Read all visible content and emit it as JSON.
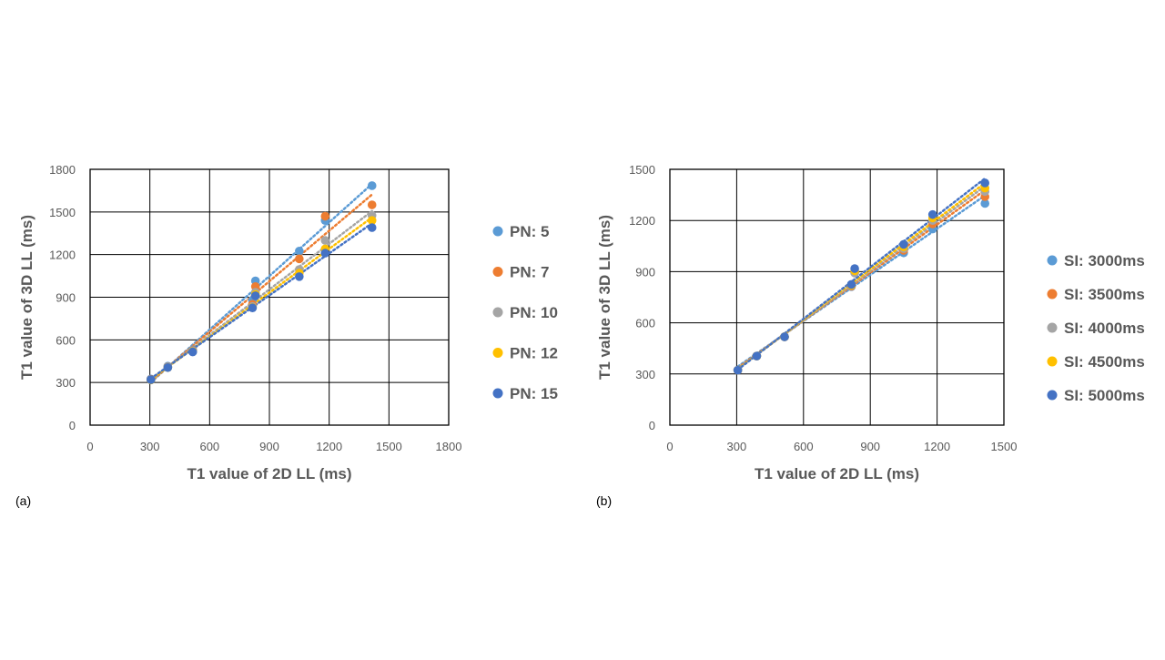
{
  "chart_data": [
    {
      "type": "scatter",
      "panel_label": "(a)",
      "title": "",
      "xlabel": "T1 value of 2D LL (ms)",
      "ylabel": "T1 value of 3D LL (ms)",
      "xlim": [
        0,
        1800
      ],
      "ylim": [
        0,
        1800
      ],
      "xticks": [
        0,
        300,
        600,
        900,
        1200,
        1500,
        1800
      ],
      "yticks": [
        0,
        300,
        600,
        900,
        1200,
        1500,
        1800
      ],
      "grid": true,
      "trendlines": "dotted linear",
      "legend_position": "right",
      "x": [
        305,
        390,
        515,
        815,
        830,
        1050,
        1180,
        1415
      ],
      "series": [
        {
          "name": "PN: 5",
          "color": "#5B9BD5",
          "values": [
            325,
            415,
            530,
            880,
            1015,
            1225,
            1440,
            1685
          ]
        },
        {
          "name": "PN: 7",
          "color": "#ED7D31",
          "values": [
            322,
            410,
            525,
            850,
            975,
            1170,
            1470,
            1550
          ]
        },
        {
          "name": "PN: 10",
          "color": "#A5A5A5",
          "values": [
            320,
            408,
            522,
            835,
            935,
            1095,
            1300,
            1475
          ]
        },
        {
          "name": "PN: 12",
          "color": "#FFC000",
          "values": [
            318,
            405,
            518,
            828,
            920,
            1070,
            1240,
            1440
          ]
        },
        {
          "name": "PN: 15",
          "color": "#4472C4",
          "values": [
            320,
            405,
            515,
            825,
            910,
            1045,
            1210,
            1390
          ]
        }
      ]
    },
    {
      "type": "scatter",
      "panel_label": "(b)",
      "title": "",
      "xlabel": "T1 value of 2D LL (ms)",
      "ylabel": "T1 value of 3D LL (ms)",
      "xlim": [
        0,
        1500
      ],
      "ylim": [
        0,
        1500
      ],
      "xticks": [
        0,
        300,
        600,
        900,
        1200,
        1500
      ],
      "yticks": [
        0,
        300,
        600,
        900,
        1200,
        1500
      ],
      "grid": true,
      "trendlines": "dotted linear",
      "legend_position": "right",
      "x": [
        305,
        390,
        515,
        815,
        830,
        1050,
        1180,
        1415
      ],
      "series": [
        {
          "name": "SI: 3000ms",
          "color": "#5B9BD5",
          "values": [
            322,
            405,
            518,
            812,
            900,
            1010,
            1150,
            1300
          ]
        },
        {
          "name": "SI: 3500ms",
          "color": "#ED7D31",
          "values": [
            322,
            405,
            518,
            815,
            895,
            1025,
            1180,
            1340
          ]
        },
        {
          "name": "SI: 4000ms",
          "color": "#A5A5A5",
          "values": [
            322,
            405,
            518,
            818,
            892,
            1035,
            1200,
            1370
          ]
        },
        {
          "name": "SI: 4500ms",
          "color": "#FFC000",
          "values": [
            322,
            405,
            518,
            820,
            905,
            1045,
            1215,
            1390
          ]
        },
        {
          "name": "SI: 5000ms",
          "color": "#4472C4",
          "values": [
            322,
            405,
            518,
            825,
            918,
            1060,
            1235,
            1420
          ]
        }
      ]
    }
  ]
}
